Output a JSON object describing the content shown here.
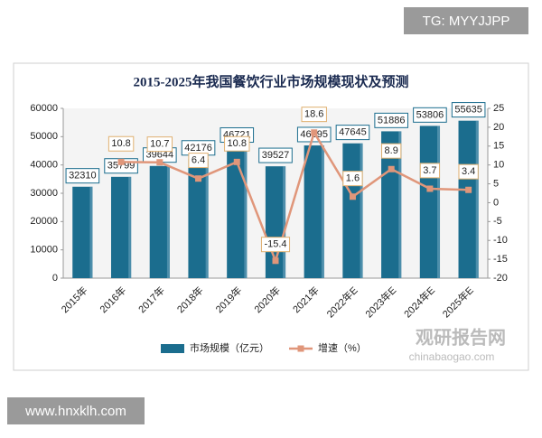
{
  "chart_data": {
    "type": "bar",
    "title": "2015-2025年我国餐饮行业市场规模现状及预测",
    "categories": [
      "2015年",
      "2016年",
      "2017年",
      "2018年",
      "2019年",
      "2020年",
      "2021年",
      "2022年E",
      "2023年E",
      "2024年E",
      "2025年E"
    ],
    "series": [
      {
        "name": "市场规模（亿元）",
        "color": "#1b6d8e",
        "type": "bar",
        "values": [
          32310,
          35799,
          39644,
          42176,
          46721,
          39527,
          46895,
          47645,
          51886,
          53806,
          55635
        ]
      },
      {
        "name": "增速（%）",
        "color": "#e0967a",
        "type": "line",
        "axis": "y2",
        "values": [
          null,
          10.8,
          10.7,
          6.4,
          10.8,
          -15.4,
          18.6,
          1.6,
          8.9,
          3.7,
          3.4
        ]
      }
    ],
    "ylim": [
      0,
      60000
    ],
    "yticks": [
      0,
      10000,
      20000,
      30000,
      40000,
      50000,
      60000
    ],
    "y2lim": [
      -20,
      25
    ],
    "y2ticks": [
      -20,
      -15,
      -10,
      -5,
      0,
      5,
      10,
      15,
      20,
      25
    ],
    "legend": "bottom"
  },
  "watermarks": {
    "tag": "TG: MYYJJPP",
    "site": "www.hnxklh.com",
    "brand": "观研报告网",
    "brand_url": "chinabaogao.com"
  }
}
